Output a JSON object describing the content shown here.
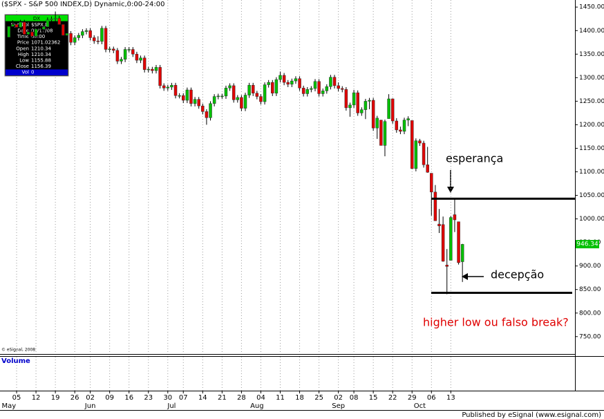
{
  "chart_data": {
    "type": "candlestick",
    "title": "($SPX - S&P 500 INDEX,D) Dynamic,0:00-24:00",
    "copyright": "© eSignal, 2008",
    "volume_title": "Volume",
    "footer": "Published by eSignal (www.esignal.com)",
    "categories": [
      null,
      null,
      "05",
      null,
      null,
      null,
      null,
      "12",
      null,
      null,
      null,
      null,
      "19",
      null,
      null,
      null,
      null,
      "26",
      null,
      null,
      null,
      "02",
      null,
      null,
      null,
      null,
      "09",
      null,
      null,
      null,
      null,
      "16",
      null,
      null,
      null,
      null,
      "23",
      null,
      null,
      null,
      null,
      "30",
      null,
      null,
      null,
      "07",
      null,
      null,
      null,
      null,
      "14",
      null,
      null,
      null,
      null,
      "21",
      null,
      null,
      null,
      null,
      "28",
      null,
      null,
      null,
      null,
      "04",
      null,
      null,
      null,
      null,
      "11",
      null,
      null,
      null,
      null,
      "18",
      null,
      null,
      null,
      null,
      "25",
      null,
      null,
      null,
      null,
      "02",
      null,
      null,
      null,
      "08",
      null,
      null,
      null,
      null,
      "15",
      null,
      null,
      null,
      null,
      "22",
      null,
      null,
      null,
      null,
      "29",
      null,
      null,
      null,
      null,
      "06",
      null,
      null,
      null,
      null,
      "13",
      null,
      null,
      null
    ],
    "months": [
      "May",
      null,
      null,
      null,
      null,
      null,
      null,
      null,
      null,
      null,
      null,
      null,
      null,
      null,
      null,
      null,
      null,
      null,
      null,
      null,
      null,
      "Jun",
      null,
      null,
      null,
      null,
      null,
      null,
      null,
      null,
      null,
      null,
      null,
      null,
      null,
      null,
      null,
      null,
      null,
      null,
      null,
      null,
      "Jul",
      null,
      null,
      null,
      null,
      null,
      null,
      null,
      null,
      null,
      null,
      null,
      null,
      null,
      null,
      null,
      null,
      null,
      null,
      null,
      null,
      null,
      "Aug",
      null,
      null,
      null,
      null,
      null,
      null,
      null,
      null,
      null,
      null,
      null,
      null,
      null,
      null,
      null,
      null,
      null,
      null,
      null,
      null,
      "Sep",
      null,
      null,
      null,
      null,
      null,
      null,
      null,
      null,
      null,
      null,
      null,
      null,
      null,
      null,
      null,
      null,
      null,
      null,
      null,
      null,
      "Oct",
      null,
      null,
      null,
      null,
      null,
      null,
      null,
      null,
      null,
      null,
      null
    ],
    "ohlc": [
      [
        1386,
        1414,
        1380,
        1409
      ],
      [
        1409,
        1422,
        1403,
        1413
      ],
      [
        1413,
        1418,
        1401,
        1407
      ],
      [
        1407,
        1423,
        1401,
        1418
      ],
      [
        1418,
        1423,
        1386,
        1392
      ],
      [
        1392,
        1402,
        1386,
        1397
      ],
      [
        1397,
        1402,
        1382,
        1388
      ],
      [
        1388,
        1408,
        1382,
        1403
      ],
      [
        1403,
        1408,
        1397,
        1403
      ],
      [
        1403,
        1413,
        1397,
        1408
      ],
      [
        1408,
        1428,
        1402,
        1423
      ],
      [
        1423,
        1430,
        1417,
        1425
      ],
      [
        1425,
        1440,
        1419,
        1426
      ],
      [
        1426,
        1431,
        1407,
        1413
      ],
      [
        1413,
        1418,
        1384,
        1390
      ],
      [
        1390,
        1399,
        1384,
        1394
      ],
      [
        1394,
        1399,
        1369,
        1375
      ],
      [
        1375,
        1390,
        1369,
        1385
      ],
      [
        1385,
        1395,
        1379,
        1390
      ],
      [
        1390,
        1403,
        1384,
        1398
      ],
      [
        1398,
        1405,
        1392,
        1400
      ],
      [
        1400,
        1405,
        1379,
        1385
      ],
      [
        1385,
        1390,
        1372,
        1378
      ],
      [
        1378,
        1388,
        1371,
        1377
      ],
      [
        1377,
        1410,
        1371,
        1405
      ],
      [
        1405,
        1410,
        1354,
        1360
      ],
      [
        1360,
        1366,
        1354,
        1361
      ],
      [
        1361,
        1366,
        1352,
        1358
      ],
      [
        1358,
        1363,
        1329,
        1335
      ],
      [
        1335,
        1344,
        1329,
        1339
      ],
      [
        1339,
        1365,
        1333,
        1360
      ],
      [
        1360,
        1365,
        1354,
        1360
      ],
      [
        1360,
        1365,
        1344,
        1350
      ],
      [
        1350,
        1355,
        1331,
        1337
      ],
      [
        1337,
        1347,
        1331,
        1342
      ],
      [
        1342,
        1347,
        1311,
        1317
      ],
      [
        1317,
        1323,
        1311,
        1318
      ],
      [
        1318,
        1323,
        1309,
        1315
      ],
      [
        1315,
        1327,
        1309,
        1322
      ],
      [
        1322,
        1327,
        1277,
        1283
      ],
      [
        1283,
        1288,
        1272,
        1278
      ],
      [
        1278,
        1285,
        1272,
        1280
      ],
      [
        1280,
        1289,
        1274,
        1284
      ],
      [
        1284,
        1289,
        1256,
        1262
      ],
      [
        1262,
        1267,
        1256,
        1262
      ],
      [
        1262,
        1267,
        1246,
        1252
      ],
      [
        1252,
        1279,
        1246,
        1274
      ],
      [
        1274,
        1279,
        1239,
        1245
      ],
      [
        1245,
        1259,
        1239,
        1254
      ],
      [
        1254,
        1259,
        1234,
        1240
      ],
      [
        1240,
        1245,
        1222,
        1228
      ],
      [
        1228,
        1233,
        1200,
        1215
      ],
      [
        1215,
        1250,
        1209,
        1245
      ],
      [
        1245,
        1265,
        1239,
        1260
      ],
      [
        1260,
        1266,
        1254,
        1261
      ],
      [
        1261,
        1266,
        1255,
        1261
      ],
      [
        1261,
        1283,
        1255,
        1278
      ],
      [
        1278,
        1288,
        1272,
        1283
      ],
      [
        1283,
        1288,
        1247,
        1253
      ],
      [
        1253,
        1263,
        1247,
        1258
      ],
      [
        1258,
        1263,
        1229,
        1235
      ],
      [
        1235,
        1268,
        1229,
        1263
      ],
      [
        1263,
        1289,
        1257,
        1284
      ],
      [
        1284,
        1289,
        1261,
        1267
      ],
      [
        1267,
        1272,
        1254,
        1260
      ],
      [
        1260,
        1265,
        1243,
        1249
      ],
      [
        1249,
        1290,
        1243,
        1285
      ],
      [
        1285,
        1295,
        1279,
        1290
      ],
      [
        1290,
        1295,
        1261,
        1267
      ],
      [
        1267,
        1301,
        1261,
        1296
      ],
      [
        1296,
        1313,
        1290,
        1305
      ],
      [
        1305,
        1310,
        1284,
        1290
      ],
      [
        1290,
        1295,
        1280,
        1286
      ],
      [
        1286,
        1298,
        1280,
        1293
      ],
      [
        1293,
        1303,
        1287,
        1298
      ],
      [
        1298,
        1303,
        1272,
        1278
      ],
      [
        1278,
        1283,
        1260,
        1266
      ],
      [
        1266,
        1280,
        1260,
        1275
      ],
      [
        1275,
        1282,
        1269,
        1277
      ],
      [
        1277,
        1297,
        1271,
        1292
      ],
      [
        1292,
        1297,
        1260,
        1266
      ],
      [
        1266,
        1277,
        1260,
        1272
      ],
      [
        1272,
        1286,
        1266,
        1281
      ],
      [
        1281,
        1306,
        1275,
        1301
      ],
      [
        1301,
        1306,
        1277,
        1283
      ],
      [
        1283,
        1290,
        1271,
        1277
      ],
      [
        1277,
        1282,
        1269,
        1275
      ],
      [
        1275,
        1280,
        1230,
        1236
      ],
      [
        1236,
        1247,
        1217,
        1242
      ],
      [
        1242,
        1274,
        1236,
        1268
      ],
      [
        1268,
        1273,
        1219,
        1225
      ],
      [
        1225,
        1237,
        1219,
        1232
      ],
      [
        1232,
        1255,
        1212,
        1250
      ],
      [
        1250,
        1257,
        1233,
        1252
      ],
      [
        1252,
        1257,
        1187,
        1193
      ],
      [
        1193,
        1219,
        1170,
        1214
      ],
      [
        1210,
        1210,
        1156,
        1156
      ],
      [
        1156,
        1211,
        1133,
        1207
      ],
      [
        1213,
        1265,
        1213,
        1255
      ],
      [
        1255,
        1256,
        1202,
        1208
      ],
      [
        1208,
        1214,
        1183,
        1189
      ],
      [
        1189,
        1196,
        1180,
        1186
      ],
      [
        1186,
        1215,
        1180,
        1210
      ],
      [
        1210,
        1218,
        1197,
        1213
      ],
      [
        1209,
        1209,
        1106,
        1107
      ],
      [
        1107,
        1171,
        1101,
        1166
      ],
      [
        1166,
        1170,
        1155,
        1161
      ],
      [
        1161,
        1166,
        1109,
        1115
      ],
      [
        1115,
        1153,
        1098,
        1099
      ],
      [
        1097,
        1097,
        1007,
        1057
      ],
      [
        1057,
        1072,
        996,
        996
      ],
      [
        989,
        1021,
        970,
        985
      ],
      [
        988,
        1005,
        909,
        910
      ],
      [
        902,
        936,
        840,
        899
      ],
      [
        912,
        1006,
        912,
        1003
      ],
      [
        1009,
        1044,
        972,
        998
      ],
      [
        994,
        994,
        903,
        907
      ],
      [
        909,
        947,
        866,
        946
      ]
    ],
    "up_color": "#00c000",
    "down_color": "#e00000",
    "wick_color": "#000000",
    "ylim": [
      713,
      1465
    ],
    "yticks": [
      {
        "value": 750,
        "label": "750.00"
      },
      {
        "value": 800,
        "label": "800.00"
      },
      {
        "value": 850,
        "label": "850.00"
      },
      {
        "value": 900,
        "label": "900.00"
      },
      {
        "value": 950,
        "label": "950.00"
      },
      {
        "value": 1000,
        "label": "1000.00"
      },
      {
        "value": 1050,
        "label": "1050.00"
      },
      {
        "value": 1100,
        "label": "1100.00"
      },
      {
        "value": 1150,
        "label": "1150.00"
      },
      {
        "value": 1200,
        "label": "1200.00"
      },
      {
        "value": 1250,
        "label": "1250.00"
      },
      {
        "value": 1300,
        "label": "1300.00"
      },
      {
        "value": 1350,
        "label": "1350.00"
      },
      {
        "value": 1400,
        "label": "1400.00"
      },
      {
        "value": 1450,
        "label": "1450.00"
      }
    ],
    "grid": true,
    "last_price": 946.34,
    "last_price_color": "#00c000",
    "levels": [
      1043,
      843
    ],
    "annotations": [
      {
        "text": "esperança",
        "color": "#000000"
      },
      {
        "text": "decepção",
        "color": "#000000"
      },
      {
        "text": "higher low ou falso break?",
        "color": "#e00000"
      }
    ],
    "info_box": {
      "header": "DX",
      "rows": [
        [
          "Symbol",
          "$SPX,D"
        ],
        [
          "Date",
          "09/17/08"
        ],
        [
          "Time",
          "00:00"
        ],
        [
          "Price",
          "1071.02362"
        ],
        [
          "Open",
          "1210.34"
        ],
        [
          "High",
          "1210.34"
        ],
        [
          "Low",
          "1155.88"
        ],
        [
          "Close",
          "1156.39"
        ],
        [
          "Vol",
          "0"
        ]
      ]
    }
  }
}
